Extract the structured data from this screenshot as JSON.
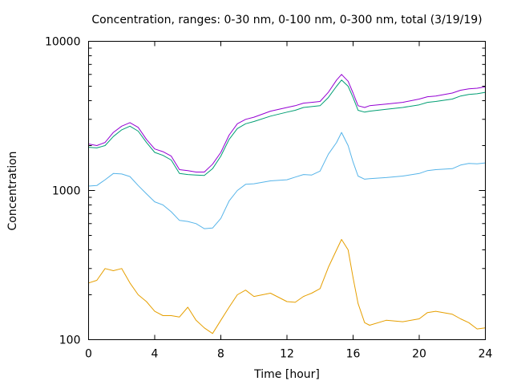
{
  "chart_data": {
    "type": "line",
    "title": "Concentration, ranges: 0-30 nm, 0-100 nm, 0-300 nm, total (3/19/19)",
    "xlabel": "Time [hour]",
    "ylabel": "Concentration",
    "xlim": [
      0,
      24
    ],
    "ylim": [
      100,
      10000
    ],
    "yscale": "log",
    "grid": false,
    "xticks": [
      0,
      4,
      8,
      12,
      16,
      20,
      24
    ],
    "xtick_labels": [
      "0",
      "4",
      "8",
      "12",
      "16",
      "20",
      "24"
    ],
    "yticks": [
      100,
      1000,
      10000
    ],
    "ytick_labels": [
      "100",
      "1000",
      "10000"
    ],
    "colors": {
      "0-30 nm": "#e69f00",
      "0-100 nm": "#56b4e9",
      "0-300 nm": "#009e73",
      "total": "#9400d3"
    },
    "series": [
      {
        "key": "0-30 nm",
        "x": [
          0,
          0.5,
          1,
          1.5,
          2,
          2.5,
          3,
          3.5,
          4,
          4.5,
          5,
          5.5,
          6,
          6.5,
          7,
          7.5,
          8,
          8.5,
          9,
          9.5,
          10,
          11,
          12,
          12.5,
          13,
          13.5,
          14,
          14.5,
          15,
          15.3,
          15.7,
          16,
          16.3,
          16.7,
          17,
          18,
          19,
          20,
          20.5,
          21,
          22,
          22.5,
          23,
          23.5,
          24
        ],
        "y": [
          240,
          250,
          300,
          290,
          300,
          240,
          200,
          180,
          155,
          145,
          145,
          142,
          165,
          135,
          120,
          110,
          135,
          165,
          200,
          215,
          195,
          205,
          180,
          178,
          195,
          205,
          220,
          305,
          400,
          470,
          400,
          260,
          175,
          130,
          125,
          135,
          132,
          138,
          152,
          155,
          148,
          138,
          130,
          118,
          120
        ]
      },
      {
        "key": "0-100 nm",
        "x": [
          0,
          0.5,
          1,
          1.5,
          2,
          2.5,
          3,
          3.5,
          4,
          4.5,
          5,
          5.5,
          6,
          6.5,
          7,
          7.5,
          8,
          8.5,
          9,
          9.5,
          10,
          11,
          12,
          12.5,
          13,
          13.5,
          14,
          14.5,
          15,
          15.3,
          15.7,
          16,
          16.3,
          16.7,
          17,
          18,
          19,
          20,
          20.5,
          21,
          22,
          22.5,
          23,
          23.5,
          24
        ],
        "y": [
          1070,
          1080,
          1180,
          1300,
          1290,
          1240,
          1080,
          950,
          840,
          800,
          720,
          630,
          620,
          600,
          555,
          560,
          650,
          850,
          1000,
          1100,
          1110,
          1160,
          1180,
          1230,
          1280,
          1270,
          1350,
          1750,
          2100,
          2450,
          2000,
          1550,
          1250,
          1190,
          1200,
          1220,
          1250,
          1300,
          1360,
          1380,
          1400,
          1480,
          1520,
          1510,
          1530
        ]
      },
      {
        "key": "0-300 nm",
        "x": [
          0,
          0.5,
          1,
          1.5,
          2,
          2.5,
          3,
          3.5,
          4,
          4.5,
          5,
          5.5,
          6,
          6.5,
          7,
          7.5,
          8,
          8.5,
          9,
          9.5,
          10,
          11,
          12,
          12.5,
          13,
          13.5,
          14,
          14.5,
          15,
          15.3,
          15.7,
          16,
          16.3,
          16.7,
          17,
          18,
          19,
          20,
          20.5,
          21,
          22,
          22.5,
          23,
          23.5,
          24
        ],
        "y": [
          1950,
          1930,
          2000,
          2300,
          2550,
          2700,
          2500,
          2100,
          1800,
          1720,
          1600,
          1300,
          1280,
          1270,
          1260,
          1400,
          1700,
          2200,
          2600,
          2800,
          2900,
          3150,
          3350,
          3450,
          3600,
          3650,
          3700,
          4200,
          5000,
          5500,
          5000,
          4200,
          3450,
          3350,
          3400,
          3500,
          3600,
          3750,
          3900,
          3950,
          4100,
          4300,
          4400,
          4450,
          4550
        ]
      },
      {
        "key": "total",
        "x": [
          0,
          0.5,
          1,
          1.5,
          2,
          2.5,
          3,
          3.5,
          4,
          4.5,
          5,
          5.5,
          6,
          6.5,
          7,
          7.5,
          8,
          8.5,
          9,
          9.5,
          10,
          11,
          12,
          12.5,
          13,
          13.5,
          14,
          14.5,
          15,
          15.3,
          15.7,
          16,
          16.3,
          16.7,
          17,
          18,
          19,
          20,
          20.5,
          21,
          22,
          22.5,
          23,
          23.5,
          24
        ],
        "y": [
          2050,
          2000,
          2100,
          2450,
          2700,
          2850,
          2650,
          2200,
          1900,
          1820,
          1700,
          1380,
          1360,
          1330,
          1330,
          1500,
          1800,
          2350,
          2800,
          3000,
          3100,
          3400,
          3600,
          3700,
          3850,
          3900,
          3950,
          4550,
          5500,
          6000,
          5400,
          4500,
          3700,
          3600,
          3700,
          3800,
          3900,
          4100,
          4250,
          4300,
          4500,
          4700,
          4800,
          4850,
          4950
        ]
      }
    ]
  }
}
